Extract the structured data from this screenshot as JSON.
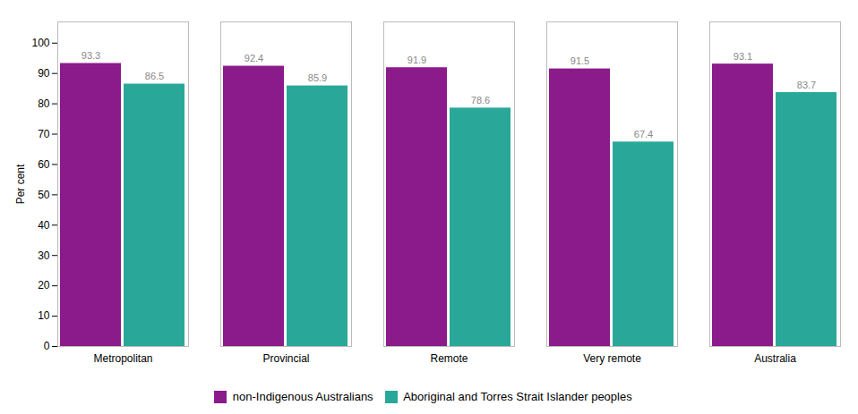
{
  "chart_data": {
    "type": "bar",
    "categories": [
      "Metropolitan",
      "Provincial",
      "Remote",
      "Very remote",
      "Australia"
    ],
    "series": [
      {
        "name": "non-Indigenous Australians",
        "color": "#8B1A8B",
        "values": [
          93.3,
          92.4,
          91.9,
          91.5,
          93.1
        ]
      },
      {
        "name": "Aboriginal and Torres Strait Islander peoples",
        "color": "#29A89A",
        "values": [
          86.5,
          85.9,
          78.6,
          67.4,
          83.7
        ]
      }
    ],
    "ylabel": "Per cent",
    "ylim": [
      0,
      107
    ],
    "yticks": [
      0,
      10,
      20,
      30,
      40,
      50,
      60,
      70,
      80,
      90,
      100
    ],
    "data_labels": true,
    "grid": false,
    "legend": "bottom"
  }
}
